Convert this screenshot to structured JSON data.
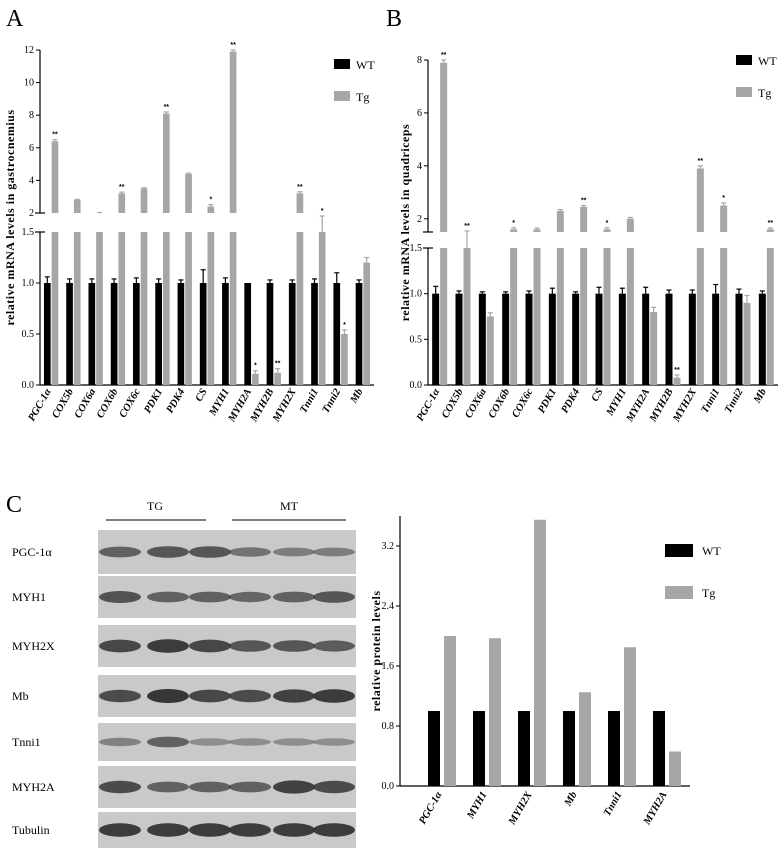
{
  "colors": {
    "wt": "#000000",
    "tg": "#a6a6a6",
    "blot_bg": "#c9c9c9",
    "blot_band": "#2e2e2e"
  },
  "panel_labels": {
    "a": "A",
    "b": "B",
    "c": "C"
  },
  "western_blot": {
    "group_labels": [
      "TG",
      "MT"
    ],
    "rows": [
      "PGC-1α",
      "MYH1",
      "MYH2X",
      "Mb",
      "Tnni1",
      "MYH2A",
      "Tubulin"
    ]
  },
  "chart_data": [
    {
      "id": "A",
      "type": "bar",
      "broken_axis": true,
      "ylabel": "relative mRNA levels in gastrocnemius",
      "categories": [
        "PGC-1α",
        "COX5b",
        "COX6a",
        "COX6b",
        "COX6c",
        "PDK1",
        "PDK4",
        "CS",
        "MYH1",
        "MYH2A",
        "MYH2B",
        "MYH2X",
        "Tnni1",
        "Tnni2",
        "Mb"
      ],
      "lower_ticks": [
        "0.0",
        "0.5",
        "1.0",
        "1.5"
      ],
      "upper_ticks": [
        "2",
        "4",
        "6",
        "8",
        "10",
        "12"
      ],
      "lower_range": [
        0,
        1.5
      ],
      "upper_range": [
        2,
        12
      ],
      "legend": [
        "WT",
        "Tg"
      ],
      "legend_position": "top-right",
      "series": [
        {
          "name": "WT",
          "values": [
            1.0,
            1.0,
            1.0,
            1.0,
            1.0,
            1.0,
            1.0,
            1.0,
            1.0,
            1.0,
            1.0,
            1.0,
            1.0,
            1.0,
            1.0
          ],
          "errors": [
            0.06,
            0.04,
            0.04,
            0.04,
            0.05,
            0.04,
            0.03,
            0.13,
            0.05,
            0.0,
            0.03,
            0.03,
            0.04,
            0.1,
            0.03
          ]
        },
        {
          "name": "Tg",
          "values": [
            6.4,
            2.8,
            2.0,
            3.2,
            3.5,
            8.1,
            4.4,
            2.4,
            11.9,
            0.11,
            0.12,
            3.2,
            1.5,
            0.5,
            1.2
          ],
          "errors": [
            0.1,
            0.04,
            0.03,
            0.08,
            0.05,
            0.1,
            0.05,
            0.12,
            0.1,
            0.03,
            0.04,
            0.1,
            0.03,
            0.04,
            0.05
          ]
        }
      ],
      "significance": [
        "**",
        "",
        "",
        "**",
        "",
        "**",
        "",
        "*",
        "**",
        "*",
        "**",
        "**",
        "*",
        "*",
        ""
      ]
    },
    {
      "id": "B",
      "type": "bar",
      "broken_axis": true,
      "ylabel": "relative mRNA levels in quadriceps",
      "categories": [
        "PGC-1α",
        "COX5b",
        "COX6a",
        "COX6b",
        "COX6c",
        "PDK1",
        "PDK4",
        "CS",
        "MYH1",
        "MYH2A",
        "MYH2B",
        "MYH2X",
        "Tnni1",
        "Tnni2",
        "Mb"
      ],
      "lower_ticks": [
        "0.0",
        "0.5",
        "1.0",
        "1.5"
      ],
      "upper_ticks": [
        "2",
        "4",
        "6",
        "8"
      ],
      "lower_range": [
        0,
        1.5
      ],
      "upper_range": [
        1.5,
        8
      ],
      "legend": [
        "WT",
        "Tg"
      ],
      "legend_position": "top-right",
      "series": [
        {
          "name": "WT",
          "values": [
            1.0,
            1.0,
            1.0,
            1.0,
            1.0,
            1.0,
            1.0,
            1.0,
            1.0,
            1.0,
            1.0,
            1.0,
            1.0,
            1.0,
            1.0
          ],
          "errors": [
            0.08,
            0.03,
            0.02,
            0.02,
            0.03,
            0.06,
            0.02,
            0.07,
            0.06,
            0.07,
            0.04,
            0.04,
            0.1,
            0.05,
            0.03
          ]
        },
        {
          "name": "Tg",
          "values": [
            7.9,
            1.5,
            0.75,
            1.6,
            1.6,
            2.3,
            2.45,
            1.6,
            2.0,
            0.8,
            0.08,
            3.9,
            2.5,
            0.9,
            1.6
          ],
          "errors": [
            0.1,
            0.04,
            0.04,
            0.06,
            0.05,
            0.05,
            0.05,
            0.06,
            0.05,
            0.05,
            0.03,
            0.1,
            0.1,
            0.08,
            0.05
          ]
        }
      ],
      "significance": [
        "**",
        "**",
        "",
        "*",
        "",
        "",
        "**",
        "*",
        "",
        "",
        "**",
        "**",
        "*",
        "",
        "**"
      ]
    },
    {
      "id": "C",
      "type": "bar",
      "ylabel": "relative protein levels",
      "categories": [
        "PGC-1α",
        "MYH1",
        "MYH2X",
        "Mb",
        "Tnni1",
        "MYH2A"
      ],
      "ticks": [
        "0.0",
        "0.8",
        "1.6",
        "2.4",
        "3.2"
      ],
      "ylim": [
        0,
        3.6
      ],
      "legend": [
        "WT",
        "Tg"
      ],
      "legend_position": "top-right",
      "series": [
        {
          "name": "WT",
          "values": [
            1.0,
            1.0,
            1.0,
            1.0,
            1.0,
            1.0
          ]
        },
        {
          "name": "Tg",
          "values": [
            2.0,
            1.97,
            3.55,
            1.25,
            1.85,
            0.46
          ]
        }
      ]
    }
  ]
}
